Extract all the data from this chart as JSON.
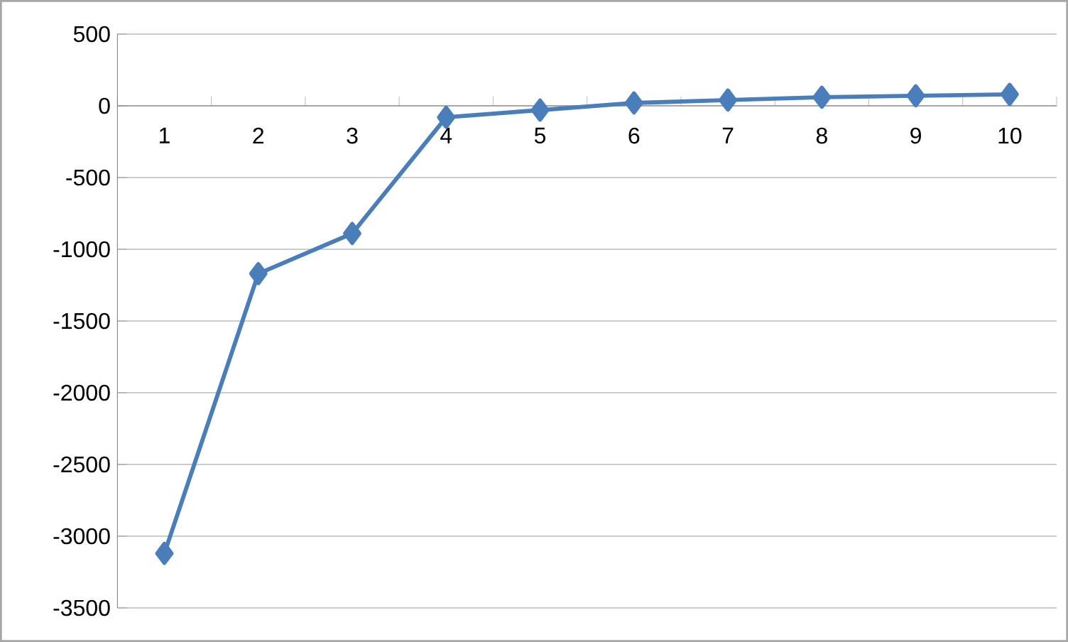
{
  "chart_data": {
    "type": "line",
    "categories": [
      "1",
      "2",
      "3",
      "4",
      "5",
      "6",
      "7",
      "8",
      "9",
      "10"
    ],
    "series": [
      {
        "color": "#4a7ebb",
        "values": [
          -3120,
          -1170,
          -890,
          -80,
          -30,
          20,
          40,
          60,
          70,
          80
        ]
      }
    ],
    "ylim": [
      -3500,
      500
    ],
    "yticks": [
      -3500,
      -3000,
      -2500,
      -2000,
      -1500,
      -1000,
      -500,
      0,
      500
    ],
    "grid": "y",
    "marker": "diamond",
    "line_style": "solid"
  }
}
